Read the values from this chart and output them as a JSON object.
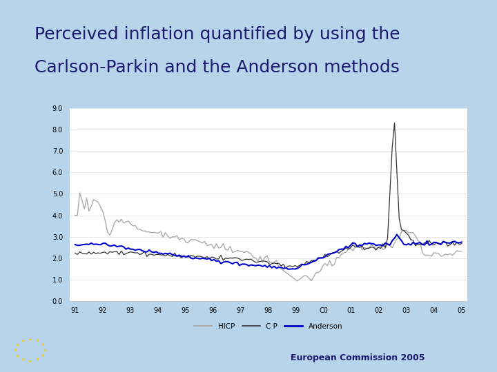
{
  "title_line1": "Perceived inflation quantified by using the",
  "title_line2": "Carlson-Parkin and the Anderson methods",
  "title_color": "#1a1a6e",
  "bg_color": "#b8d4ea",
  "plot_bg_color": "#ffffff",
  "footer_text": "European Commission 2005",
  "footer_color": "#1a1a6e",
  "ylim": [
    0.0,
    9.0
  ],
  "yticks": [
    0.0,
    1.0,
    2.0,
    3.0,
    4.0,
    5.0,
    6.0,
    7.0,
    8.0,
    9.0
  ],
  "xtick_labels": [
    "91",
    "92",
    "93",
    "94",
    "95",
    "96",
    "97",
    "98",
    "99",
    "C0",
    "01",
    "02",
    "03",
    "04",
    "05"
  ],
  "legend_labels": [
    "HICP",
    "C P",
    "Anderson"
  ],
  "line_colors": {
    "HICP": "#aaaaaa",
    "CP": "#333333",
    "Anderson": "#0000cc"
  },
  "top_bar_color": "#1a1a6e",
  "footer_bar_color": "#1a1a6e",
  "eu_flag_bg": "#003399",
  "eu_star_color": "#FFCC00"
}
